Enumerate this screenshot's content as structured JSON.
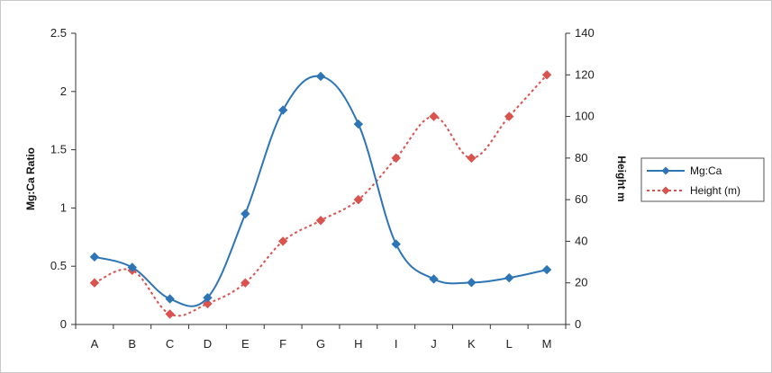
{
  "chart_data": {
    "type": "line",
    "categories": [
      "A",
      "B",
      "C",
      "D",
      "E",
      "F",
      "G",
      "H",
      "I",
      "J",
      "K",
      "L",
      "M"
    ],
    "series": [
      {
        "name": "Mg:Ca",
        "axis": "left",
        "color": "#2e75b6",
        "line_style": "solid",
        "smooth": true,
        "marker": "diamond",
        "values": [
          0.58,
          0.49,
          0.22,
          0.23,
          0.95,
          1.84,
          2.13,
          1.72,
          0.69,
          0.39,
          0.36,
          0.4,
          0.47
        ]
      },
      {
        "name": "Height (m)",
        "axis": "right",
        "color": "#d9534f",
        "line_style": "dotted",
        "smooth": true,
        "marker": "diamond",
        "values": [
          20,
          26,
          5,
          10,
          20,
          40,
          50,
          60,
          80,
          100,
          80,
          100,
          120
        ]
      }
    ],
    "ylabel": "Mg:Ca Ratio",
    "y2label": "Height m",
    "ylim": [
      0,
      2.5
    ],
    "y2lim": [
      0,
      140
    ],
    "yticks": [
      "0",
      "0.5",
      "1",
      "1.5",
      "2",
      "2.5"
    ],
    "y2ticks": [
      "0",
      "20",
      "40",
      "60",
      "80",
      "100",
      "120",
      "140"
    ],
    "grid": false,
    "legend_position": "right"
  }
}
